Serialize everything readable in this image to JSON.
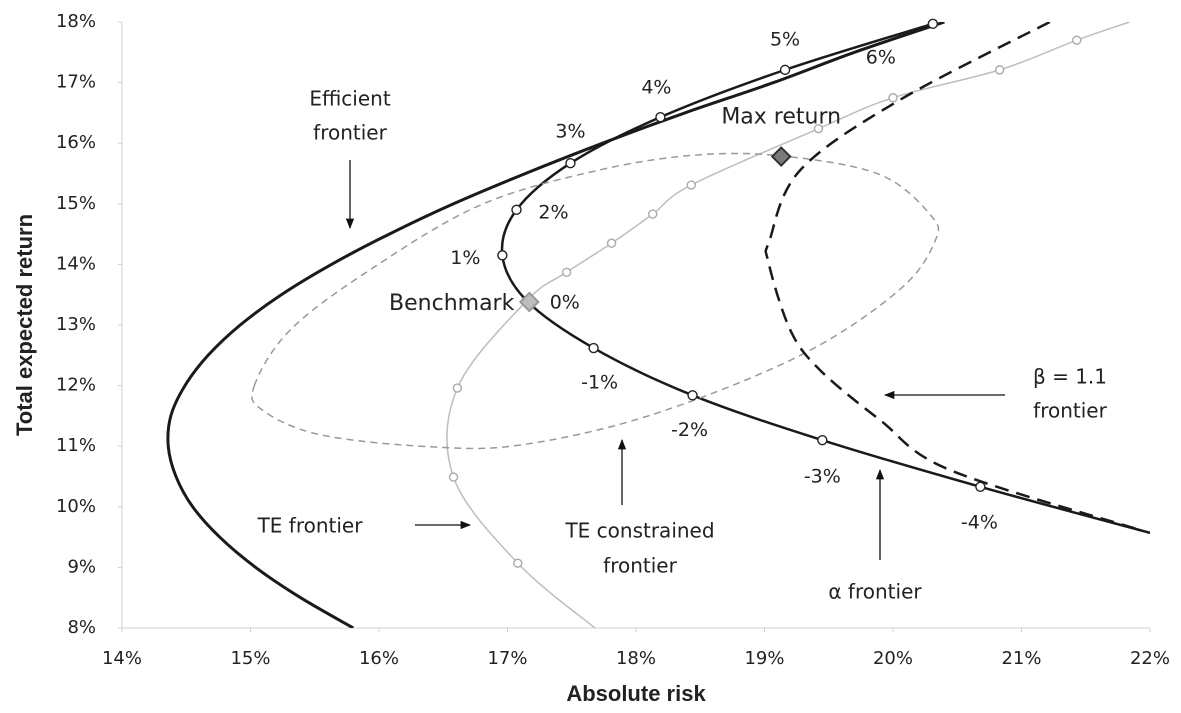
{
  "chart_data": {
    "type": "line",
    "xlabel": "Absolute risk",
    "ylabel": "Total expected return",
    "xlim": [
      14,
      22
    ],
    "xticks": [
      {
        "value": 14,
        "label": "14%"
      },
      {
        "value": 15,
        "label": "15%"
      },
      {
        "value": 16,
        "label": "16%"
      },
      {
        "value": 17,
        "label": "17%"
      },
      {
        "value": 18,
        "label": "18%"
      },
      {
        "value": 19,
        "label": "19%"
      },
      {
        "value": 20,
        "label": "20%"
      },
      {
        "value": 21,
        "label": "21%"
      },
      {
        "value": 22,
        "label": "22%"
      }
    ],
    "ylim": [
      8,
      18
    ],
    "yticks": [
      {
        "value": 8,
        "label": "8%"
      },
      {
        "value": 9,
        "label": "9%"
      },
      {
        "value": 10,
        "label": "10%"
      },
      {
        "value": 11,
        "label": "11%"
      },
      {
        "value": 12,
        "label": "12%"
      },
      {
        "value": 13,
        "label": "13%"
      },
      {
        "value": 14,
        "label": "14%"
      },
      {
        "value": 15,
        "label": "15%"
      },
      {
        "value": 16,
        "label": "16%"
      },
      {
        "value": 17,
        "label": "17%"
      },
      {
        "value": 18,
        "label": "18%"
      }
    ],
    "grid": false,
    "series": [
      {
        "label_lines": [
          "Efficient",
          "frontier"
        ],
        "color": "#1a1a1a",
        "width": 3,
        "dash": false,
        "x": [
          15.8,
          15.39,
          15.04,
          14.76,
          14.55,
          14.42,
          14.36,
          14.38,
          14.49,
          14.67,
          14.92,
          15.24,
          15.63,
          16.08,
          16.58,
          17.14,
          17.74,
          18.38,
          19.07,
          19.7,
          20.4
        ],
        "y": [
          8,
          8.5,
          9,
          9.5,
          10,
          10.5,
          11,
          11.5,
          12,
          12.5,
          13,
          13.5,
          14,
          14.5,
          15,
          15.5,
          16,
          16.5,
          17,
          17.5,
          18
        ]
      },
      {
        "label_lines": [
          "α  frontier"
        ],
        "color": "#1a1a1a",
        "width": 2.5,
        "dash": false,
        "marker": true,
        "x": [
          20.31,
          19.16,
          18.19,
          17.49,
          17.07,
          16.96,
          17.15,
          17.67,
          18.44,
          19.45,
          20.68,
          22
        ],
        "y": [
          17.97,
          17.21,
          16.43,
          15.67,
          14.9,
          14.15,
          13.4,
          12.62,
          11.84,
          11.1,
          10.33,
          9.57
        ],
        "point_labels": [
          "6%",
          "5%",
          "4%",
          "3%",
          "2%",
          "1%",
          "0%",
          "-1%",
          "-2%",
          "-3%",
          "-4%",
          null
        ]
      },
      {
        "label_lines": [
          "TE frontier"
        ],
        "color": "#bdbdbd",
        "width": 1.5,
        "dash": false,
        "marker": true,
        "x": [
          17.68,
          17.08,
          16.58,
          16.61,
          17.15,
          17.46,
          17.81,
          18.13,
          18.43,
          19.42,
          20.0,
          20.83,
          21.43,
          21.84
        ],
        "y": [
          8,
          9.07,
          10.49,
          11.96,
          13.4,
          13.87,
          14.35,
          14.83,
          15.31,
          16.24,
          16.75,
          17.21,
          17.7,
          18
        ]
      },
      {
        "label_lines": [
          "TE constrained",
          "frontier"
        ],
        "color": "#999999",
        "width": 1.5,
        "dash": true,
        "closed": true,
        "x": [
          15.03,
          15.31,
          15.93,
          16.79,
          17.72,
          18.5,
          19.18,
          19.9,
          20.29,
          20.33,
          20.05,
          19.28,
          18.11,
          17.1,
          16.4,
          15.54,
          15.09
        ],
        "y": [
          12.0,
          12.92,
          13.91,
          14.98,
          15.56,
          15.81,
          15.78,
          15.48,
          14.82,
          14.4,
          13.58,
          12.5,
          11.51,
          11.02,
          10.99,
          11.19,
          11.6
        ]
      },
      {
        "label_lines": [
          "β = 1.1",
          "frontier"
        ],
        "color": "#1a1a1a",
        "width": 2.5,
        "dash": true,
        "x": [
          21.22,
          20.05,
          19.28,
          19.04,
          19.03,
          19.2,
          19.43,
          19.9,
          20.44,
          21.92
        ],
        "y": [
          18.0,
          16.71,
          15.56,
          14.4,
          14.04,
          12.92,
          12.26,
          11.43,
          10.61,
          9.62
        ]
      }
    ],
    "points": [
      {
        "name": "Benchmark",
        "x": 17.17,
        "y": 13.38,
        "color": "#bdbdbd",
        "stroke": "#999999"
      },
      {
        "name": "Max return",
        "x": 19.13,
        "y": 15.78,
        "color": "#7a7a7a",
        "stroke": "#333333"
      }
    ]
  }
}
